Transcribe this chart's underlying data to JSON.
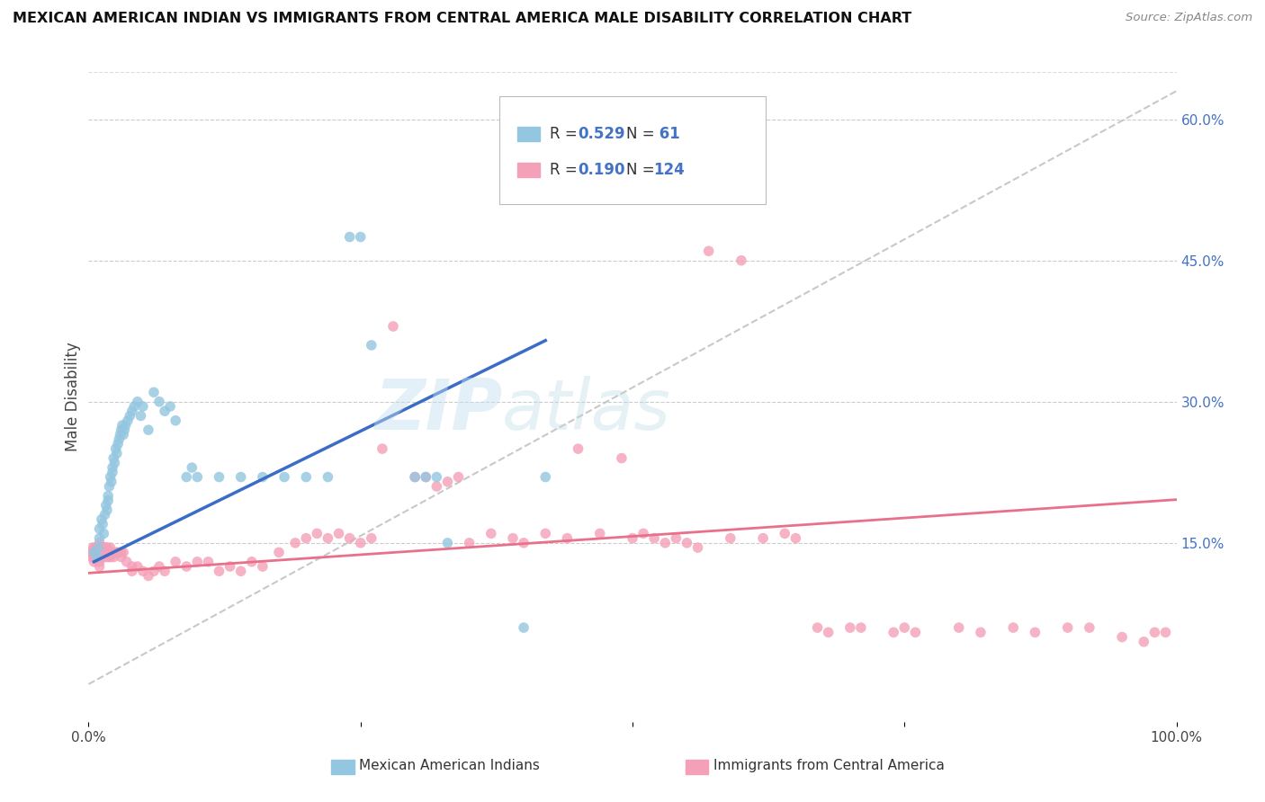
{
  "title": "MEXICAN AMERICAN INDIAN VS IMMIGRANTS FROM CENTRAL AMERICA MALE DISABILITY CORRELATION CHART",
  "source": "Source: ZipAtlas.com",
  "ylabel": "Male Disability",
  "xlim": [
    0,
    1.0
  ],
  "ylim": [
    -0.04,
    0.65
  ],
  "yticks": [
    0.15,
    0.3,
    0.45,
    0.6
  ],
  "ytick_labels": [
    "15.0%",
    "30.0%",
    "45.0%",
    "60.0%"
  ],
  "ytick_color": "#4472c4",
  "background_color": "#ffffff",
  "watermark_zip": "ZIP",
  "watermark_atlas": "atlas",
  "color_blue": "#93C6E0",
  "color_pink": "#F4A0B8",
  "line_blue": "#3B6CC7",
  "line_pink": "#E8708A",
  "line_dash": "#BBBBBB",
  "legend_r1": "R = 0.529",
  "legend_n1": "N =  61",
  "legend_r2": "R = 0.190",
  "legend_n2": "N = 124",
  "blue_x": [
    0.005,
    0.008,
    0.009,
    0.01,
    0.01,
    0.012,
    0.013,
    0.014,
    0.015,
    0.016,
    0.017,
    0.018,
    0.018,
    0.019,
    0.02,
    0.021,
    0.022,
    0.022,
    0.023,
    0.024,
    0.025,
    0.026,
    0.027,
    0.028,
    0.029,
    0.03,
    0.031,
    0.032,
    0.033,
    0.034,
    0.036,
    0.038,
    0.04,
    0.042,
    0.045,
    0.048,
    0.05,
    0.055,
    0.06,
    0.065,
    0.07,
    0.075,
    0.08,
    0.09,
    0.095,
    0.1,
    0.12,
    0.14,
    0.16,
    0.18,
    0.2,
    0.22,
    0.24,
    0.25,
    0.26,
    0.3,
    0.31,
    0.32,
    0.33,
    0.4,
    0.42
  ],
  "blue_y": [
    0.14,
    0.135,
    0.145,
    0.155,
    0.165,
    0.175,
    0.17,
    0.16,
    0.18,
    0.19,
    0.185,
    0.195,
    0.2,
    0.21,
    0.22,
    0.215,
    0.225,
    0.23,
    0.24,
    0.235,
    0.25,
    0.245,
    0.255,
    0.26,
    0.265,
    0.27,
    0.275,
    0.265,
    0.27,
    0.275,
    0.28,
    0.285,
    0.29,
    0.295,
    0.3,
    0.285,
    0.295,
    0.27,
    0.31,
    0.3,
    0.29,
    0.295,
    0.28,
    0.22,
    0.23,
    0.22,
    0.22,
    0.22,
    0.22,
    0.22,
    0.22,
    0.22,
    0.475,
    0.475,
    0.36,
    0.22,
    0.22,
    0.22,
    0.15,
    0.06,
    0.22
  ],
  "pink_x": [
    0.002,
    0.003,
    0.004,
    0.005,
    0.005,
    0.005,
    0.006,
    0.006,
    0.006,
    0.007,
    0.007,
    0.007,
    0.008,
    0.008,
    0.008,
    0.009,
    0.009,
    0.009,
    0.01,
    0.01,
    0.01,
    0.01,
    0.01,
    0.01,
    0.011,
    0.011,
    0.012,
    0.012,
    0.012,
    0.013,
    0.013,
    0.014,
    0.014,
    0.015,
    0.015,
    0.016,
    0.016,
    0.017,
    0.018,
    0.018,
    0.019,
    0.02,
    0.02,
    0.021,
    0.022,
    0.023,
    0.025,
    0.027,
    0.03,
    0.03,
    0.032,
    0.035,
    0.04,
    0.04,
    0.045,
    0.05,
    0.055,
    0.06,
    0.065,
    0.07,
    0.08,
    0.09,
    0.1,
    0.11,
    0.12,
    0.13,
    0.14,
    0.15,
    0.16,
    0.175,
    0.19,
    0.2,
    0.21,
    0.22,
    0.23,
    0.24,
    0.25,
    0.26,
    0.27,
    0.28,
    0.3,
    0.31,
    0.32,
    0.33,
    0.34,
    0.35,
    0.37,
    0.39,
    0.4,
    0.42,
    0.44,
    0.45,
    0.47,
    0.49,
    0.5,
    0.51,
    0.52,
    0.53,
    0.54,
    0.55,
    0.56,
    0.57,
    0.59,
    0.6,
    0.62,
    0.64,
    0.65,
    0.67,
    0.68,
    0.7,
    0.71,
    0.74,
    0.75,
    0.76,
    0.8,
    0.82,
    0.85,
    0.87,
    0.9,
    0.92,
    0.95,
    0.97,
    0.98,
    0.99
  ],
  "pink_y": [
    0.14,
    0.135,
    0.145,
    0.14,
    0.135,
    0.13,
    0.145,
    0.14,
    0.135,
    0.145,
    0.14,
    0.135,
    0.145,
    0.14,
    0.135,
    0.145,
    0.14,
    0.135,
    0.15,
    0.145,
    0.14,
    0.135,
    0.13,
    0.125,
    0.145,
    0.14,
    0.145,
    0.14,
    0.135,
    0.145,
    0.135,
    0.145,
    0.14,
    0.145,
    0.135,
    0.145,
    0.14,
    0.145,
    0.14,
    0.135,
    0.14,
    0.145,
    0.135,
    0.14,
    0.14,
    0.135,
    0.14,
    0.14,
    0.14,
    0.135,
    0.14,
    0.13,
    0.125,
    0.12,
    0.125,
    0.12,
    0.115,
    0.12,
    0.125,
    0.12,
    0.13,
    0.125,
    0.13,
    0.13,
    0.12,
    0.125,
    0.12,
    0.13,
    0.125,
    0.14,
    0.15,
    0.155,
    0.16,
    0.155,
    0.16,
    0.155,
    0.15,
    0.155,
    0.25,
    0.38,
    0.22,
    0.22,
    0.21,
    0.215,
    0.22,
    0.15,
    0.16,
    0.155,
    0.15,
    0.16,
    0.155,
    0.25,
    0.16,
    0.24,
    0.155,
    0.16,
    0.155,
    0.15,
    0.155,
    0.15,
    0.145,
    0.46,
    0.155,
    0.45,
    0.155,
    0.16,
    0.155,
    0.06,
    0.055,
    0.06,
    0.06,
    0.055,
    0.06,
    0.055,
    0.06,
    0.055,
    0.06,
    0.055,
    0.06,
    0.06,
    0.05,
    0.045,
    0.055,
    0.055
  ]
}
